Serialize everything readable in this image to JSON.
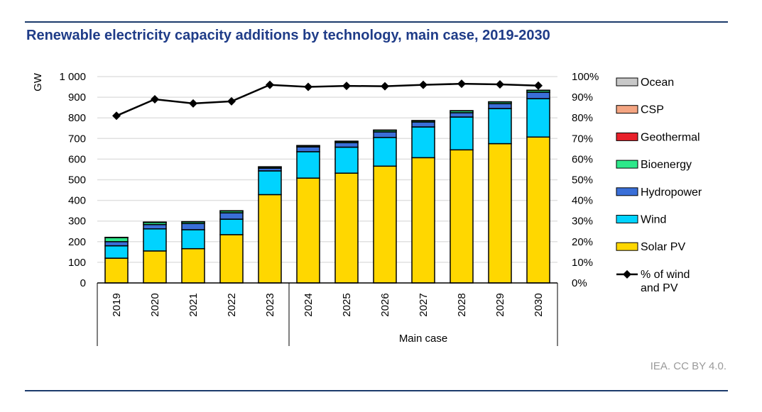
{
  "title": "Renewable electricity capacity additions by technology, main case, 2019-2030",
  "credit": "IEA. CC BY 4.0.",
  "chart_data": {
    "type": "bar",
    "stacked": true,
    "title": "Renewable electricity capacity additions by technology, main case, 2019-2030",
    "ylabel": "GW",
    "ylim": [
      0,
      1000
    ],
    "yticks": [
      "0",
      "100",
      "200",
      "300",
      "400",
      "500",
      "600",
      "700",
      "800",
      "900",
      "1 000"
    ],
    "y2lim": [
      0,
      100
    ],
    "y2ticks": [
      "0%",
      "10%",
      "20%",
      "30%",
      "40%",
      "50%",
      "60%",
      "70%",
      "80%",
      "90%",
      "100%"
    ],
    "categories": [
      "2019",
      "2020",
      "2021",
      "2022",
      "2023",
      "2024",
      "2025",
      "2026",
      "2027",
      "2028",
      "2029",
      "2030"
    ],
    "category_group": {
      "label": "Main case",
      "from": "2024",
      "to": "2030"
    },
    "grid": true,
    "legend_position": "right",
    "series": [
      {
        "name": "Solar PV",
        "color": "#ffd700",
        "values": [
          120,
          155,
          166,
          234,
          428,
          508,
          532,
          566,
          607,
          645,
          675,
          707
        ]
      },
      {
        "name": "Wind",
        "color": "#00d3ff",
        "values": [
          60,
          107,
          92,
          75,
          115,
          128,
          126,
          139,
          149,
          159,
          170,
          186
        ]
      },
      {
        "name": "Hydropower",
        "color": "#3a6fd8",
        "values": [
          20,
          21,
          30,
          31,
          13,
          23,
          22,
          27,
          24,
          21,
          24,
          31
        ]
      },
      {
        "name": "Bioenergy",
        "color": "#2de88a",
        "values": [
          20,
          10,
          8,
          9,
          6,
          6,
          6,
          8,
          6,
          9,
          8,
          9
        ]
      },
      {
        "name": "Geothermal",
        "color": "#e8202a",
        "values": [
          1,
          1,
          1,
          1,
          1,
          1,
          1,
          1,
          1,
          1,
          1,
          1
        ]
      },
      {
        "name": "CSP",
        "color": "#f4a582",
        "values": [
          0,
          1,
          0,
          0,
          0,
          0,
          0,
          0,
          0,
          0,
          0,
          0
        ]
      },
      {
        "name": "Ocean",
        "color": "#c8c8c8",
        "values": [
          0,
          0,
          0,
          0,
          0,
          0,
          0,
          0,
          0,
          0,
          0,
          0
        ]
      }
    ],
    "line_series": {
      "name": "% of wind and PV",
      "name_lines": [
        "% of wind",
        "and PV"
      ],
      "color": "#000000",
      "axis": "right",
      "values": [
        81,
        89,
        87,
        88,
        96,
        95,
        95.5,
        95.3,
        96,
        96.5,
        96.2,
        95.6
      ]
    },
    "legend_order": [
      "Ocean",
      "CSP",
      "Geothermal",
      "Bioenergy",
      "Hydropower",
      "Wind",
      "Solar PV",
      "% of wind and PV"
    ]
  }
}
